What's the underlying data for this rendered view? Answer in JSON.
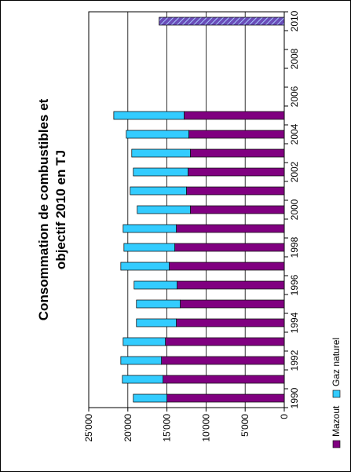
{
  "chart_data": {
    "type": "bar",
    "orientation": "horizontal-stacked",
    "title": "Consommation de combustibles et objectif 2010 en TJ",
    "title_lines": [
      "Consommation de combustibles et",
      "objectif 2010 en TJ"
    ],
    "categories": [
      "1990",
      "1991",
      "1992",
      "1993",
      "1994",
      "1995",
      "1996",
      "1997",
      "1998",
      "1999",
      "2000",
      "2001",
      "2002",
      "2003",
      "2004",
      "2005",
      "2006",
      "2007",
      "2008",
      "2009",
      "2010"
    ],
    "category_tick_labels": [
      "1990",
      "1992",
      "1994",
      "1996",
      "1998",
      "2000",
      "2002",
      "2004",
      "2006",
      "2008",
      "2010"
    ],
    "series": [
      {
        "name": "Mazout",
        "color": "#800080",
        "values": [
          15000,
          15500,
          15700,
          15200,
          13800,
          13300,
          13700,
          14700,
          14000,
          13800,
          12000,
          12500,
          12300,
          12000,
          12200,
          12800,
          null,
          null,
          null,
          null,
          null
        ]
      },
      {
        "name": "Gaz naturel",
        "color": "#33CCFF",
        "values": [
          4300,
          5200,
          5200,
          5400,
          5100,
          5600,
          5500,
          6200,
          6500,
          6800,
          6800,
          7200,
          7000,
          7500,
          8000,
          9000,
          null,
          null,
          null,
          null,
          null
        ]
      },
      {
        "name": "objectif 2010",
        "color": "#5B5BC8",
        "pattern": "hatched",
        "values": [
          null,
          null,
          null,
          null,
          null,
          null,
          null,
          null,
          null,
          null,
          null,
          null,
          null,
          null,
          null,
          null,
          null,
          null,
          null,
          null,
          16000
        ]
      }
    ],
    "value_axis": {
      "min": 0,
      "max": 25000,
      "step": 5000,
      "tick_labels": [
        "0",
        "5'000",
        "10'000",
        "15'000",
        "20'000",
        "25'000"
      ]
    },
    "grid": true,
    "legend": {
      "placement": "right",
      "entries": [
        "Mazout",
        "Gaz naturel"
      ]
    }
  }
}
